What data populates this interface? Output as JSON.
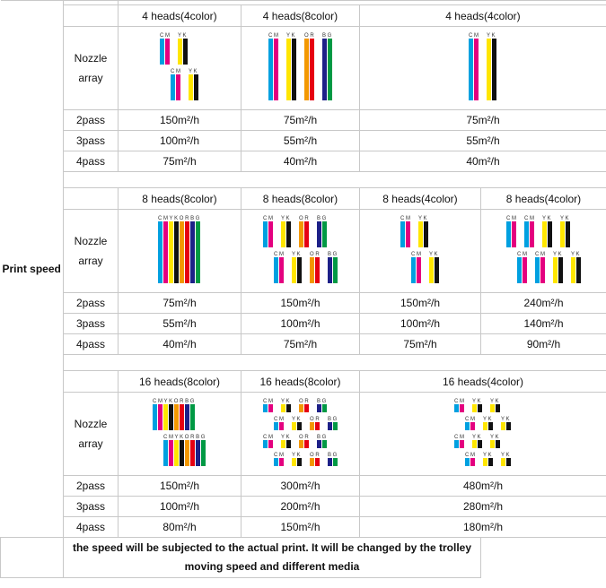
{
  "row_label": "Print speed",
  "nozzle_label": "Nozzle array",
  "ink_colors": {
    "C": "#00a0e0",
    "M": "#e4007f",
    "Y": "#ffe600",
    "K": "#111111",
    "O": "#f39800",
    "R": "#e60012",
    "B": "#1d2088",
    "G": "#009944"
  },
  "sections": [
    {
      "headers": [
        "4 heads(4color)",
        "4 heads(8color)",
        "4 heads(4color)"
      ],
      "nozzles": [
        [
          [
            "C M",
            "Y K"
          ],
          [
            "C M",
            "Y K"
          ]
        ],
        [
          [
            "C M",
            "Y K",
            "O R",
            "B G"
          ]
        ],
        [
          [
            "C M",
            "Y K"
          ]
        ]
      ],
      "rows": [
        {
          "pass": "2pass",
          "speeds": [
            "150m²/h",
            "75m²/h",
            "75m²/h"
          ]
        },
        {
          "pass": "3pass",
          "speeds": [
            "100m²/h",
            "55m²/h",
            "55m²/h"
          ]
        },
        {
          "pass": "4pass",
          "speeds": [
            "75m²/h",
            "40m²/h",
            "40m²/h"
          ]
        }
      ]
    },
    {
      "headers": [
        "8 heads(8color)",
        "8 heads(8color)",
        "8 heads(4color)",
        "8 heads(4color)"
      ],
      "nozzles": [
        [
          [
            "C M Y K O R B G"
          ]
        ],
        [
          [
            "C M",
            "Y K",
            "O R",
            "B G"
          ],
          [
            "C M",
            "Y K",
            "O R",
            "B G"
          ]
        ],
        [
          [
            "C M",
            "Y K"
          ],
          [
            "C M",
            "Y K"
          ]
        ],
        [
          [
            "C M",
            "C M",
            "Y K",
            "Y K"
          ],
          [
            "C M",
            "C M",
            "Y K",
            "Y K"
          ]
        ]
      ],
      "rows": [
        {
          "pass": "2pass",
          "speeds": [
            "75m²/h",
            "150m²/h",
            "150m²/h",
            "240m²/h"
          ]
        },
        {
          "pass": "3pass",
          "speeds": [
            "55m²/h",
            "100m²/h",
            "100m²/h",
            "140m²/h"
          ]
        },
        {
          "pass": "4pass",
          "speeds": [
            "40m²/h",
            "75m²/h",
            "75m²/h",
            "90m²/h"
          ]
        }
      ]
    },
    {
      "headers": [
        "16 heads(8color)",
        "16 heads(8color)",
        "16 heads(4color)"
      ],
      "nozzles": [
        [
          [
            "C M Y K O R B G"
          ],
          [
            "C M Y K O R B G"
          ]
        ],
        [
          [
            "C M",
            "Y K",
            "O R",
            "B G"
          ],
          [
            "C M",
            "Y K",
            "O R",
            "B G"
          ],
          [
            "C M",
            "Y K",
            "O R",
            "B G"
          ],
          [
            "C M",
            "Y K",
            "O R",
            "B G"
          ]
        ],
        [
          [
            "C M",
            "Y K",
            "Y K"
          ],
          [
            "C M",
            "Y K",
            "Y K"
          ],
          [
            "C M",
            "Y K",
            "Y K"
          ],
          [
            "C M",
            "Y K",
            "Y K"
          ]
        ]
      ],
      "rows": [
        {
          "pass": "2pass",
          "speeds": [
            "150m²/h",
            "300m²/h",
            "480m²/h"
          ]
        },
        {
          "pass": "3pass",
          "speeds": [
            "100m²/h",
            "200m²/h",
            "280m²/h"
          ]
        },
        {
          "pass": "4pass",
          "speeds": [
            "80m²/h",
            "150m²/h",
            "180m²/h"
          ]
        }
      ]
    }
  ],
  "note": "the speed will be subjected to the actual print. It will be changed by the trolley moving speed and different media"
}
